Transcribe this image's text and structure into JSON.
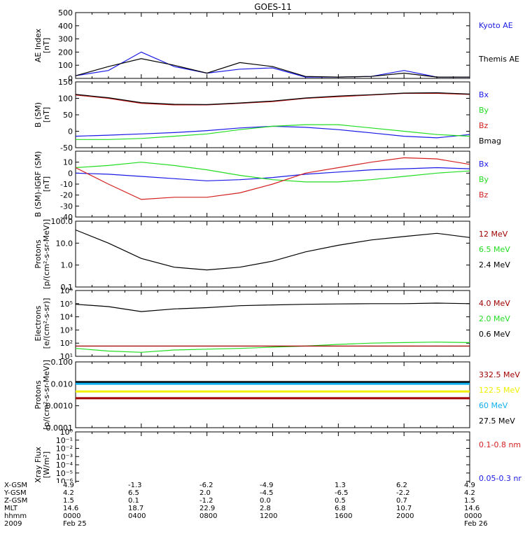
{
  "title": "GOES-11",
  "colors": {
    "black": "#000000",
    "blue": "#1a1ae6",
    "red": "#d42020",
    "green": "#22dd22",
    "darkred": "#a00000",
    "cyan": "#10b0f0",
    "yellow": "#f0f000",
    "maroon": "#7a0000"
  },
  "panels": [
    {
      "ylabel": "AE Index\n[nT]",
      "scale": "linear",
      "ylim": [
        0,
        500
      ],
      "ticks": [
        "500",
        "400",
        "300",
        "200",
        "100",
        "0"
      ],
      "tickvals": [
        500,
        400,
        300,
        200,
        100,
        0
      ],
      "legend": [
        {
          "text": "Kyoto AE",
          "color": "#1a1ae6"
        },
        {
          "text": "Themis AE",
          "color": "#000000"
        }
      ]
    },
    {
      "ylabel": "B (SM)\n[nT]",
      "scale": "linear",
      "ylim": [
        -50,
        150
      ],
      "ticks": [
        "150",
        "100",
        "50",
        "0",
        "-50"
      ],
      "tickvals": [
        150,
        100,
        50,
        0,
        -50
      ],
      "legend": [
        {
          "text": "Bx",
          "color": "#1a1ae6"
        },
        {
          "text": "By",
          "color": "#22dd22"
        },
        {
          "text": "Bz",
          "color": "#d42020"
        },
        {
          "text": "Bmag",
          "color": "#000000"
        }
      ]
    },
    {
      "ylabel": "B (SM)-IGRF (SM)\n[nT]",
      "scale": "linear",
      "ylim": [
        -40,
        20
      ],
      "ticks": [
        "10",
        "0",
        "-10",
        "-20",
        "-30",
        "-40"
      ],
      "tickvals": [
        10,
        0,
        -10,
        -20,
        -30,
        -40
      ],
      "legend": [
        {
          "text": "Bx",
          "color": "#1a1ae6"
        },
        {
          "text": "By",
          "color": "#22dd22"
        },
        {
          "text": "Bz",
          "color": "#d42020"
        }
      ]
    },
    {
      "ylabel": "Protons\n[p/(cm²-s-sr-MeV)]",
      "scale": "log",
      "ylim": [
        0.1,
        100
      ],
      "ticks": [
        "100.0",
        "10.0",
        "1.0",
        "0.1"
      ],
      "tickvals": [
        100,
        10,
        1,
        0.1
      ],
      "legend": [
        {
          "text": "12 MeV",
          "color": "#a00000"
        },
        {
          "text": "6.5 MeV",
          "color": "#22dd22"
        },
        {
          "text": "2.4 MeV",
          "color": "#000000"
        }
      ]
    },
    {
      "ylabel": "Electrons\n[e/(cm²-s-sr)]",
      "scale": "log",
      "ylim": [
        10,
        1000000
      ],
      "ticks": [
        "10⁶",
        "10⁵",
        "10⁴",
        "10³",
        "10²",
        "10¹"
      ],
      "tickvals": [
        1000000,
        100000,
        10000,
        1000,
        100,
        10
      ],
      "legend": [
        {
          "text": "4.0 MeV",
          "color": "#a00000"
        },
        {
          "text": "2.0 MeV",
          "color": "#22dd22"
        },
        {
          "text": "0.6 MeV",
          "color": "#000000"
        }
      ]
    },
    {
      "ylabel": "Protons\n[p/(cm²-s-sr-MeV)]",
      "scale": "log",
      "ylim": [
        0.0001,
        0.1
      ],
      "ticks": [
        "0.100",
        "0.010",
        "0.0010",
        "0.0001"
      ],
      "tickvals": [
        0.1,
        0.01,
        0.001,
        0.0001
      ],
      "legend": [
        {
          "text": "332.5 MeV",
          "color": "#a00000"
        },
        {
          "text": "122.5 MeV",
          "color": "#f0f000"
        },
        {
          "text": "60 MeV",
          "color": "#10b0f0"
        },
        {
          "text": "27.5 MeV",
          "color": "#000000"
        }
      ]
    },
    {
      "ylabel": "Xray Flux\n[W/m²]",
      "scale": "log",
      "ylim": [
        1e-08,
        1
      ],
      "ticks": [
        "10⁰",
        "10⁻¹",
        "10⁻²",
        "10⁻³",
        "10⁻⁴",
        "10⁻⁵",
        "10⁻⁶",
        "10⁻⁷",
        "10⁻⁸"
      ],
      "tickvals": [
        1,
        0.1,
        0.01,
        0.001,
        0.0001,
        1e-05,
        1e-06,
        1e-07,
        1e-08
      ],
      "legend": [
        {
          "text": "0.1-0.8 nm",
          "color": "#d42020"
        },
        {
          "text": "0.05-0.3 nr",
          "color": "#1a1ae6"
        }
      ]
    }
  ],
  "footer": {
    "labels": [
      "X-GSM",
      "Y-GSM",
      "Z-GSM",
      "MLT",
      "hhmm",
      "2009"
    ],
    "columns": [
      [
        "4.9",
        "4.2",
        "1.5",
        "14.6",
        "0000",
        "Feb 25"
      ],
      [
        "-1.3",
        "6.5",
        "0.1",
        "18.7",
        "0400",
        ""
      ],
      [
        "-6.2",
        "2.0",
        "-1.2",
        "22.9",
        "0800",
        ""
      ],
      [
        "-4.9",
        "-4.5",
        "0.0",
        "2.8",
        "1200",
        ""
      ],
      [
        "1.3",
        "-6.5",
        "0.5",
        "6.8",
        "1600",
        ""
      ],
      [
        "6.2",
        "-2.2",
        "0.7",
        "10.7",
        "2000",
        ""
      ],
      [
        "4.9",
        "4.2",
        "1.5",
        "14.6",
        "0000",
        "Feb 26"
      ]
    ]
  },
  "chart_data": {
    "type": "line",
    "title": "GOES-11",
    "x_hours": [
      0,
      2,
      4,
      6,
      8,
      10,
      12,
      14,
      16,
      18,
      20,
      22,
      24
    ],
    "series": [
      {
        "panel": 0,
        "name": "Kyoto AE",
        "values": [
          20,
          60,
          200,
          90,
          40,
          70,
          80,
          10,
          10,
          15,
          60,
          10,
          10
        ]
      },
      {
        "panel": 0,
        "name": "Themis AE",
        "values": [
          20,
          90,
          150,
          100,
          40,
          120,
          90,
          15,
          10,
          15,
          40,
          10,
          10
        ]
      },
      {
        "panel": 1,
        "name": "Bx",
        "values": [
          -15,
          -12,
          -8,
          -4,
          2,
          10,
          15,
          12,
          5,
          -5,
          -15,
          -20,
          -10
        ]
      },
      {
        "panel": 1,
        "name": "By",
        "values": [
          -25,
          -25,
          -22,
          -15,
          -8,
          5,
          15,
          20,
          20,
          10,
          0,
          -10,
          -15
        ]
      },
      {
        "panel": 1,
        "name": "Bz",
        "values": [
          110,
          100,
          85,
          80,
          80,
          85,
          90,
          100,
          105,
          110,
          115,
          115,
          112
        ]
      },
      {
        "panel": 1,
        "name": "Bmag",
        "values": [
          112,
          102,
          87,
          82,
          81,
          86,
          92,
          101,
          107,
          111,
          116,
          117,
          113
        ]
      },
      {
        "panel": 2,
        "name": "Bx",
        "values": [
          0,
          -1,
          -3,
          -5,
          -7,
          -6,
          -4,
          -1,
          1,
          3,
          4,
          5,
          4
        ]
      },
      {
        "panel": 2,
        "name": "By",
        "values": [
          5,
          7,
          10,
          7,
          3,
          -2,
          -6,
          -8,
          -8,
          -6,
          -3,
          0,
          2
        ]
      },
      {
        "panel": 2,
        "name": "Bz",
        "values": [
          5,
          -10,
          -24,
          -22,
          -22,
          -18,
          -10,
          0,
          5,
          10,
          14,
          13,
          8
        ]
      },
      {
        "panel": 3,
        "name": "2.4 MeV",
        "values": [
          40,
          10,
          2,
          0.8,
          0.6,
          0.8,
          1.5,
          4,
          8,
          14,
          20,
          28,
          18
        ]
      },
      {
        "panel": 4,
        "name": "0.6 MeV",
        "values": [
          90000,
          60000,
          25000,
          40000,
          50000,
          70000,
          80000,
          90000,
          95000,
          100000,
          100000,
          110000,
          100000
        ]
      },
      {
        "panel": 4,
        "name": "2.0 MeV",
        "values": [
          40,
          25,
          20,
          30,
          35,
          40,
          50,
          60,
          80,
          100,
          110,
          120,
          110
        ]
      },
      {
        "panel": 4,
        "name": "4.0 MeV",
        "values": [
          60,
          60,
          60,
          60,
          60,
          60,
          60,
          60,
          60,
          60,
          60,
          60,
          60
        ]
      },
      {
        "panel": 5,
        "name": "27.5 MeV",
        "values": [
          0.012,
          0.012,
          0.012,
          0.012,
          0.012,
          0.012,
          0.012,
          0.012,
          0.012,
          0.012,
          0.012,
          0.012,
          0.012
        ]
      },
      {
        "panel": 5,
        "name": "60 MeV",
        "values": [
          0.01,
          0.01,
          0.01,
          0.01,
          0.01,
          0.01,
          0.01,
          0.01,
          0.01,
          0.01,
          0.01,
          0.01,
          0.01
        ]
      },
      {
        "panel": 5,
        "name": "122.5 MeV",
        "values": [
          0.0045,
          0.0045,
          0.0045,
          0.0045,
          0.0045,
          0.0045,
          0.0045,
          0.0045,
          0.0045,
          0.0045,
          0.0045,
          0.0045,
          0.0045
        ]
      },
      {
        "panel": 5,
        "name": "332.5 MeV",
        "values": [
          0.0022,
          0.0022,
          0.0022,
          0.0022,
          0.0022,
          0.0022,
          0.0022,
          0.0022,
          0.0022,
          0.0022,
          0.0022,
          0.0022,
          0.0022
        ]
      }
    ]
  }
}
